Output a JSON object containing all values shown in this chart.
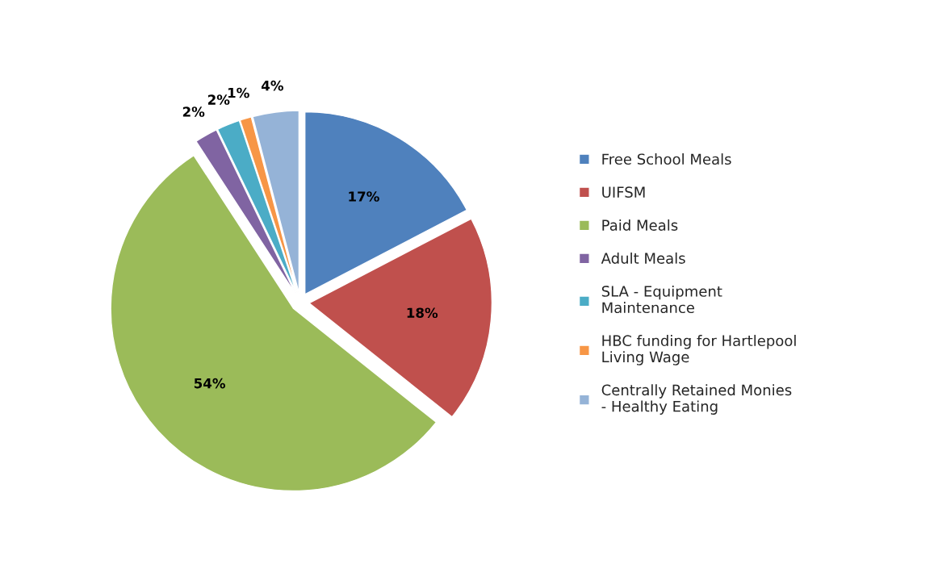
{
  "chart_data": {
    "type": "pie",
    "categories": [
      "Free School Meals",
      "UIFSM",
      "Paid Meals",
      "Adult Meals",
      "SLA - Equipment Maintenance",
      "HBC funding for Hartlepool Living Wage",
      "Centrally Retained Monies - Healthy Eating"
    ],
    "values": [
      17,
      18,
      54,
      2,
      2,
      1,
      4
    ],
    "value_labels": [
      "17%",
      "18%",
      "54%",
      "2%",
      "2%",
      "1%",
      "4%"
    ],
    "colors": [
      "#4f81bd",
      "#c0504d",
      "#9bbb59",
      "#8064a2",
      "#4bacc6",
      "#f79646",
      "#95b3d7"
    ],
    "legend": "right"
  }
}
